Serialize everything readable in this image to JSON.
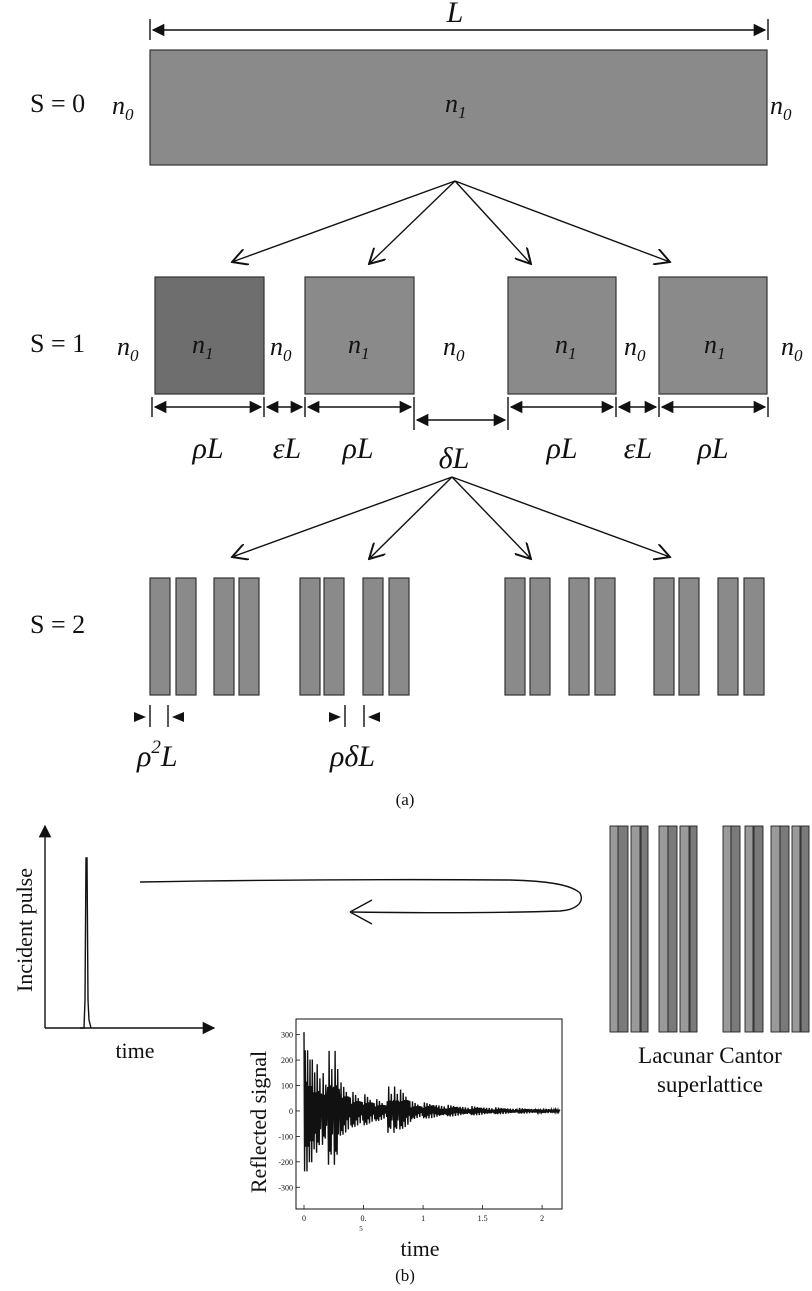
{
  "panel_a": {
    "total_length_label": "L",
    "stage0": {
      "label": "S = 0",
      "left_medium": "n",
      "left_medium_sub": "0",
      "block_medium": "n",
      "block_medium_sub": "1",
      "right_medium": "n",
      "right_medium_sub": "0"
    },
    "stage1": {
      "label": "S = 1",
      "outer_medium": "n",
      "outer_medium_sub": "0",
      "block_medium": "n",
      "block_medium_sub": "1",
      "dim_rho": "ρL",
      "dim_eps": "εL",
      "dim_delta": "δL"
    },
    "stage2": {
      "label": "S = 2",
      "dim_rho2": "ρ",
      "dim_rho2_sup": "2",
      "dim_rho2_suffix": "L",
      "dim_rhodelta": "ρδL"
    },
    "caption": "(a)"
  },
  "panel_b": {
    "incident_axis_label": "Incident pulse",
    "incident_time_label": "time",
    "structure_label_line1": "Lacunar Cantor",
    "structure_label_line2": "superlattice",
    "caption": "(b)",
    "inset": {
      "ylabel": "Reflected signal",
      "xlabel": "time",
      "y_ticks": [
        "300",
        "200",
        "100",
        "0",
        "-100",
        "-200",
        "-300"
      ],
      "x_ticks": [
        "0",
        "0.",
        "1",
        "1.5",
        "2"
      ],
      "x_tick_extra": "5"
    }
  },
  "chart_data": {
    "type": "line",
    "title": "",
    "xlabel": "time",
    "ylabel": "Reflected signal",
    "xlim": [
      0,
      2.15
    ],
    "ylim": [
      -350,
      330
    ],
    "y_ticks": [
      300,
      200,
      100,
      0,
      -100,
      -200,
      -300
    ],
    "x_ticks": [
      0,
      0.5,
      1,
      1.5,
      2
    ],
    "series": [
      {
        "x": [
          0,
          0.02,
          0.04,
          0.06,
          0.08,
          0.1,
          0.15,
          0.2,
          0.25,
          0.3,
          0.4,
          0.5,
          0.6,
          0.7,
          0.75,
          0.8,
          0.9,
          1.0,
          1.2,
          1.4,
          1.6,
          1.8,
          2.0,
          2.15
        ],
        "y": [
          310,
          -330,
          240,
          -280,
          190,
          -210,
          150,
          -170,
          270,
          -120,
          80,
          -70,
          50,
          -40,
          110,
          -90,
          40,
          -35,
          25,
          -20,
          15,
          -12,
          10,
          5
        ]
      }
    ]
  },
  "colors": {
    "block_fill": "#8a8a8a",
    "block_fill_dark": "#6e6e6e",
    "ink": "#111111"
  }
}
